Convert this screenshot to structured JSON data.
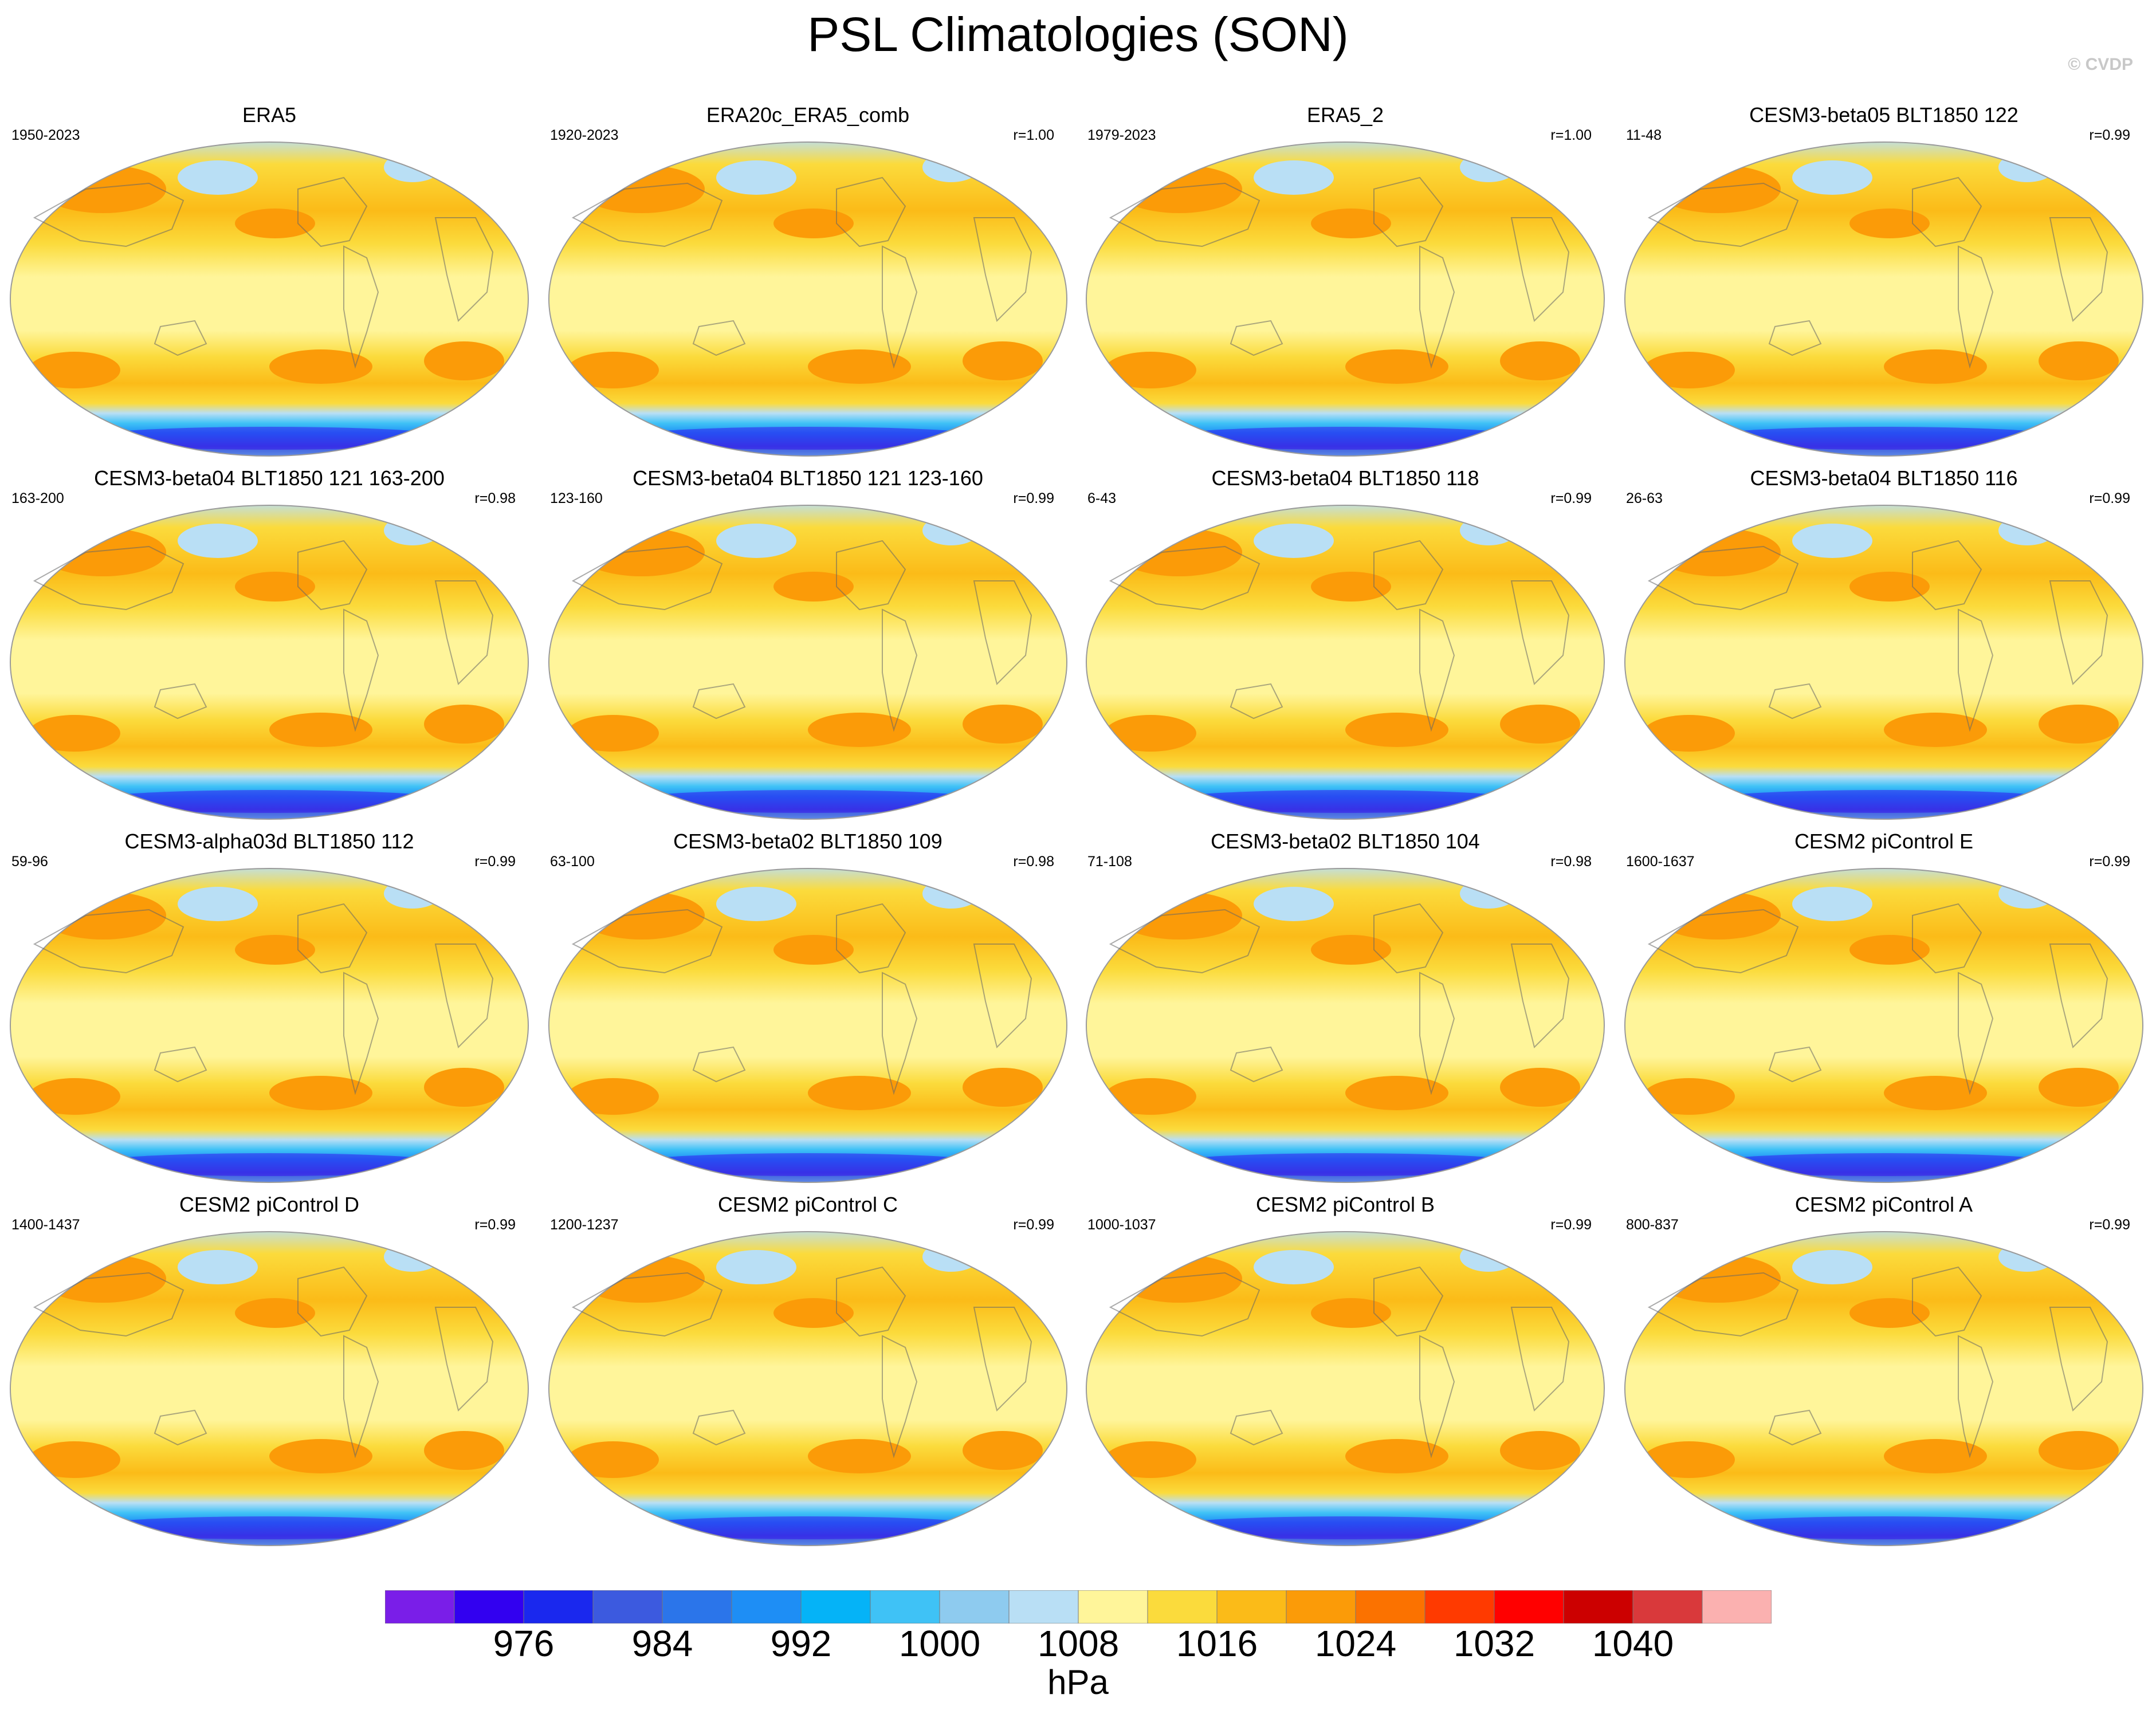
{
  "title": "PSL Climatologies (SON)",
  "watermark": "© CVDP",
  "panels": [
    {
      "name": "ERA5",
      "years": "1950-2023",
      "r": ""
    },
    {
      "name": "ERA20c_ERA5_comb",
      "years": "1920-2023",
      "r": "r=1.00"
    },
    {
      "name": "ERA5_2",
      "years": "1979-2023",
      "r": "r=1.00"
    },
    {
      "name": "CESM3-beta05 BLT1850 122",
      "years": "11-48",
      "r": "r=0.99"
    },
    {
      "name": "CESM3-beta04 BLT1850 121 163-200",
      "years": "163-200",
      "r": "r=0.98"
    },
    {
      "name": "CESM3-beta04 BLT1850 121 123-160",
      "years": "123-160",
      "r": "r=0.99"
    },
    {
      "name": "CESM3-beta04 BLT1850 118",
      "years": "6-43",
      "r": "r=0.99"
    },
    {
      "name": "CESM3-beta04 BLT1850 116",
      "years": "26-63",
      "r": "r=0.99"
    },
    {
      "name": "CESM3-alpha03d BLT1850 112",
      "years": "59-96",
      "r": "r=0.99"
    },
    {
      "name": "CESM3-beta02 BLT1850 109",
      "years": "63-100",
      "r": "r=0.98"
    },
    {
      "name": "CESM3-beta02 BLT1850 104",
      "years": "71-108",
      "r": "r=0.98"
    },
    {
      "name": "CESM2 piControl E",
      "years": "1600-1637",
      "r": "r=0.99"
    },
    {
      "name": "CESM2 piControl D",
      "years": "1400-1437",
      "r": "r=0.99"
    },
    {
      "name": "CESM2 piControl C",
      "years": "1200-1237",
      "r": "r=0.99"
    },
    {
      "name": "CESM2 piControl B",
      "years": "1000-1037",
      "r": "r=0.99"
    },
    {
      "name": "CESM2 piControl A",
      "years": "800-837",
      "r": "r=0.99"
    }
  ],
  "colorbar": {
    "colors": [
      "#7a1ee8",
      "#3200f0",
      "#1a28ee",
      "#3c5adf",
      "#2b75ea",
      "#1e8ef5",
      "#05b3f7",
      "#3fc2f6",
      "#8ecbef",
      "#b9dff5",
      "#fff59a",
      "#fbdb3c",
      "#fbbb18",
      "#fb9b08",
      "#fb7200",
      "#ff3a00",
      "#ff0000",
      "#cc0000",
      "#d9393b",
      "#fbb1b0"
    ],
    "labels": [
      "976",
      "984",
      "992",
      "1000",
      "1008",
      "1016",
      "1024",
      "1032",
      "1040"
    ],
    "units": "hPa"
  }
}
